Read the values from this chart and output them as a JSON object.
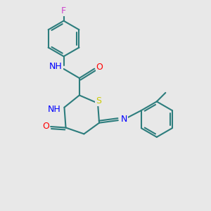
{
  "bg_color": "#e8e8e8",
  "bond_color": "#2d7d7d",
  "bond_width": 1.5,
  "atom_colors": {
    "F": "#cc44cc",
    "N": "#0000ff",
    "O": "#ff0000",
    "S": "#cccc00",
    "C": "#2d7d7d"
  },
  "font_size": 9
}
